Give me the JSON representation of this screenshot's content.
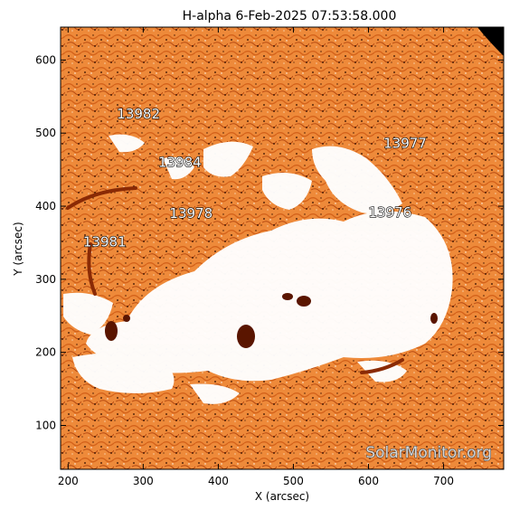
{
  "title": "H-alpha   6-Feb-2025 07:53:58.000",
  "xlabel": "X (arcsec)",
  "ylabel": "Y (arcsec)",
  "x_ticks": [
    "200",
    "300",
    "400",
    "500",
    "600",
    "700"
  ],
  "y_ticks": [
    "100",
    "200",
    "300",
    "400",
    "500",
    "600"
  ],
  "x_range": [
    190,
    780
  ],
  "y_range": [
    40,
    645
  ],
  "regions": [
    {
      "label": "13982",
      "x": 265,
      "y": 520
    },
    {
      "label": "13977",
      "x": 620,
      "y": 480
    },
    {
      "label": "13984",
      "x": 320,
      "y": 454
    },
    {
      "label": "13976",
      "x": 600,
      "y": 385
    },
    {
      "label": "13978",
      "x": 335,
      "y": 384
    },
    {
      "label": "13981",
      "x": 220,
      "y": 345
    }
  ],
  "watermark": "SolarMonitor.org",
  "colors": {
    "background": "#ee8a3a",
    "bright": "#ffffff",
    "dark": "#5a1500",
    "frame": "#000000"
  }
}
